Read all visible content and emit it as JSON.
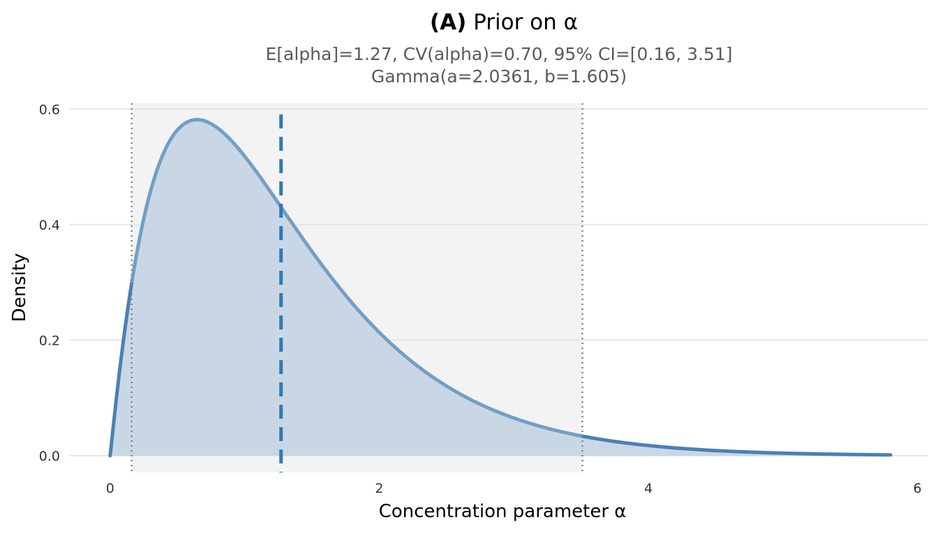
{
  "chart_data": {
    "type": "area",
    "title_prefix": "(A)",
    "title_text": "Prior on α",
    "subtitle_line1": "E[alpha]=1.27,  CV(alpha)=0.70,  95% CI=[0.16, 3.51]",
    "subtitle_line2": "Gamma(a=2.0361, b=1.605)",
    "xlabel": "Concentration parameter α",
    "ylabel": "Density",
    "xlim": [
      -0.3,
      6.08
    ],
    "ylim": [
      -0.029,
      0.61
    ],
    "xticks": [
      0,
      2,
      4,
      6
    ],
    "yticks": [
      0.0,
      0.2,
      0.4,
      0.6
    ],
    "xtick_labels": [
      "0",
      "2",
      "4",
      "6"
    ],
    "ytick_labels": [
      "0.0",
      "0.2",
      "0.4",
      "0.6"
    ],
    "grid": true,
    "gamma_shape": 2.0361,
    "gamma_rate": 1.605,
    "mean": 1.27,
    "ci": [
      0.16,
      3.51
    ],
    "series": [
      {
        "x": [
          0,
          0.05,
          0.1,
          0.15,
          0.2,
          0.3,
          0.4,
          0.5,
          0.6,
          0.65,
          0.7,
          0.8,
          0.9,
          1.0,
          1.1,
          1.2,
          1.27,
          1.4,
          1.6,
          1.8,
          2.0,
          2.2,
          2.5,
          2.8,
          3.0,
          3.2,
          3.51,
          3.8,
          4.0,
          4.3,
          4.6,
          5.0,
          5.4,
          5.8
        ],
        "y": [
          0.0,
          0.124,
          0.209,
          0.272,
          0.341,
          0.438,
          0.512,
          0.56,
          0.58,
          0.583,
          0.579,
          0.566,
          0.541,
          0.512,
          0.476,
          0.441,
          0.414,
          0.366,
          0.295,
          0.234,
          0.182,
          0.141,
          0.096,
          0.064,
          0.048,
          0.036,
          0.024,
          0.016,
          0.012,
          0.008,
          0.005,
          0.003,
          0.001,
          0.001
        ],
        "fill_color": "#c9d7e5",
        "line_color": "#4a80b5"
      }
    ],
    "colors": {
      "ci_band": "#f3f3f3",
      "grid": "#e6e6e6",
      "ci_line": "#7f7f7f",
      "mean_line": "#2e7ab8",
      "curve_inside_ci": "#729fc6"
    }
  }
}
